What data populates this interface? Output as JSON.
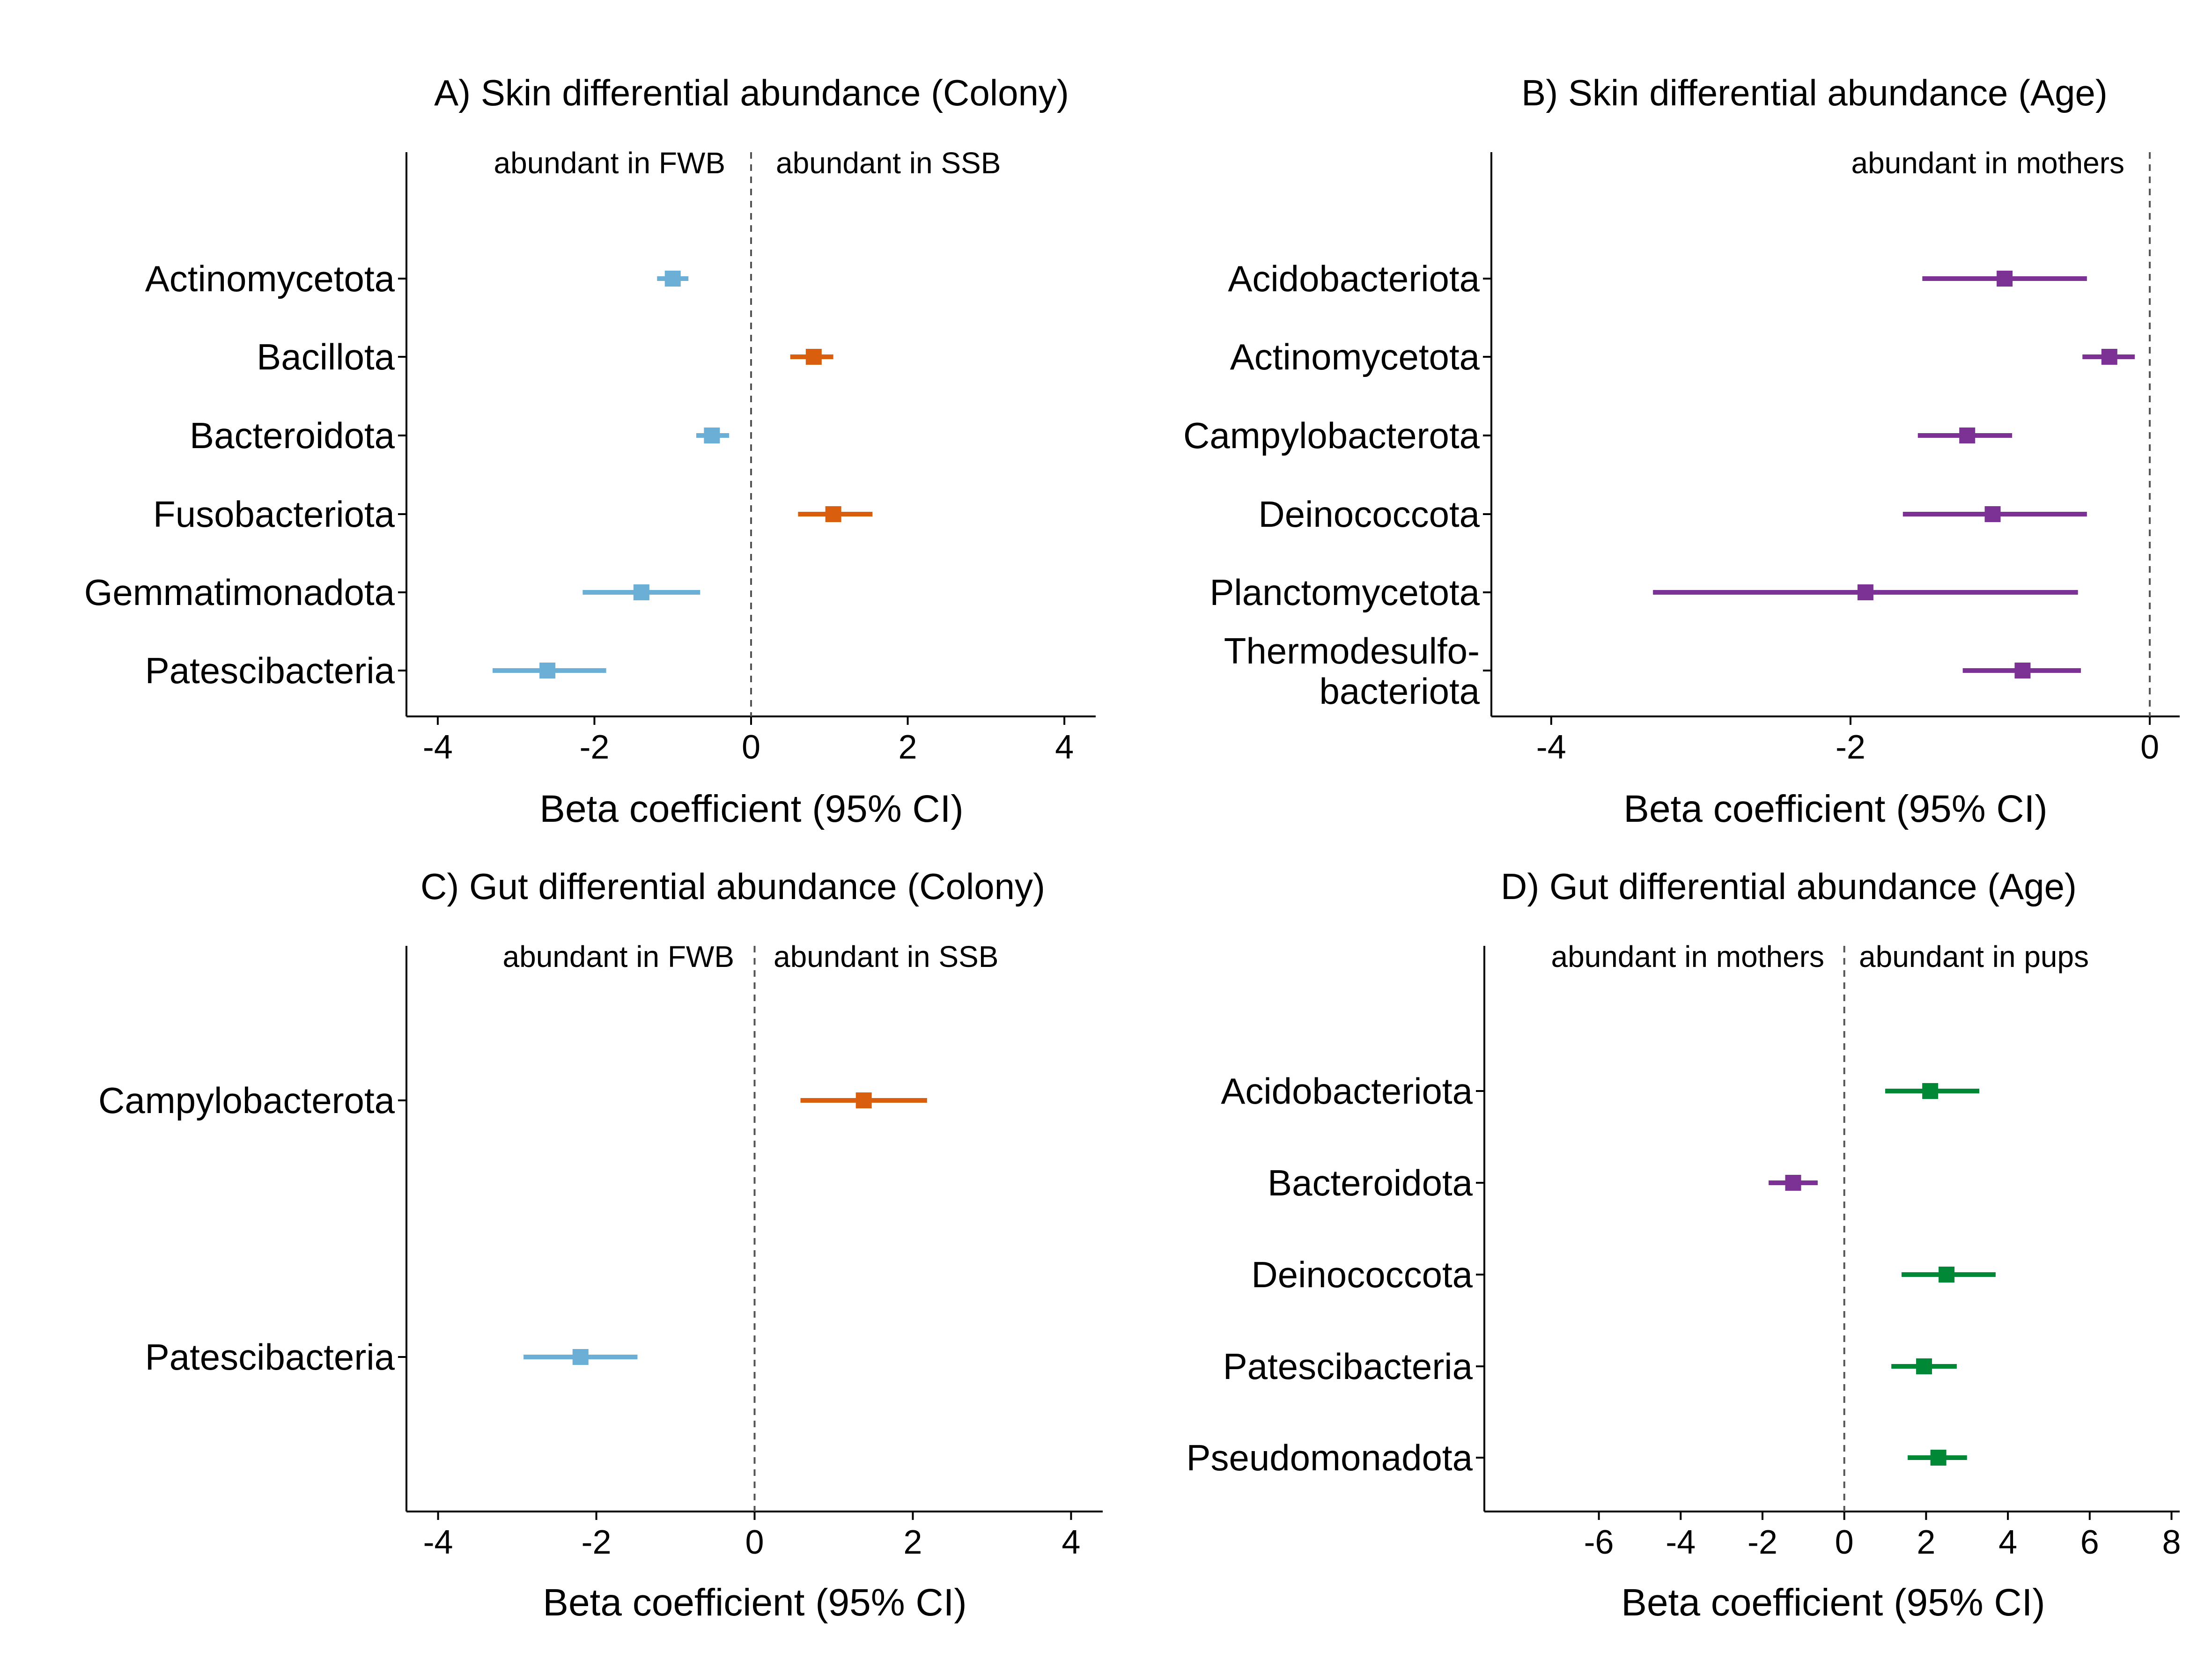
{
  "colors": {
    "fwb": "#6BAED6",
    "ssb": "#D95F0E",
    "mothers": "#7B3294",
    "pups": "#008837",
    "axis": "#000000",
    "zero_line": "#555555"
  },
  "chart_data": [
    {
      "type": "forest",
      "title": "A) Skin differential abundance (Colony)",
      "xlabel": "Beta coefficient (95% CI)",
      "xlim": [
        -4.4,
        4.4
      ],
      "xticks": [
        -4,
        -2,
        0,
        2,
        4
      ],
      "zero_line": 0,
      "annotations": [
        "abundant in FWB",
        "abundant in SSB"
      ],
      "categories": [
        "Actinomycetota",
        "Bacillota",
        "Bacteroidota",
        "Fusobacteriota",
        "Gemmatimonadota",
        "Patescibacteria"
      ],
      "estimates": [
        -1.0,
        0.8,
        -0.5,
        1.05,
        -1.4,
        -2.6
      ],
      "ci_low": [
        -1.2,
        0.5,
        -0.7,
        0.6,
        -2.15,
        -3.3
      ],
      "ci_high": [
        -0.8,
        1.05,
        -0.28,
        1.55,
        -0.65,
        -1.85
      ],
      "groups": [
        "fwb",
        "ssb",
        "fwb",
        "ssb",
        "fwb",
        "fwb"
      ]
    },
    {
      "type": "forest",
      "title": "B) Skin differential abundance (Age)",
      "xlabel": "Beta coefficient (95% CI)",
      "xlim": [
        -4.4,
        0.2
      ],
      "xticks": [
        -4,
        -2,
        0
      ],
      "zero_line": 0,
      "annotations": [
        "abundant in mothers"
      ],
      "categories": [
        "Acidobacteriota",
        "Actinomycetota",
        "Campylobacterota",
        "Deinococcota",
        "Planctomycetota",
        "Thermodesulfo-\nbacteriota"
      ],
      "estimates": [
        -0.97,
        -0.27,
        -1.22,
        -1.05,
        -1.9,
        -0.85
      ],
      "ci_low": [
        -1.52,
        -0.45,
        -1.55,
        -1.65,
        -3.32,
        -1.25
      ],
      "ci_high": [
        -0.42,
        -0.1,
        -0.92,
        -0.42,
        -0.48,
        -0.46
      ],
      "groups": [
        "mothers",
        "mothers",
        "mothers",
        "mothers",
        "mothers",
        "mothers"
      ]
    },
    {
      "type": "forest",
      "title": "C) Gut differential abundance (Colony)",
      "xlabel": "Beta coefficient (95% CI)",
      "xlim": [
        -4.4,
        4.4
      ],
      "xticks": [
        -4,
        -2,
        0,
        2,
        4
      ],
      "zero_line": 0,
      "annotations": [
        "abundant in FWB",
        "abundant in SSB"
      ],
      "categories": [
        "Campylobacterota",
        "Patescibacteria"
      ],
      "estimates": [
        1.38,
        -2.2
      ],
      "ci_low": [
        0.58,
        -2.92
      ],
      "ci_high": [
        2.18,
        -1.48
      ],
      "groups": [
        "ssb",
        "fwb"
      ]
    },
    {
      "type": "forest",
      "title": "D) Gut differential abundance (Age)",
      "xlabel": "Beta coefficient (95% CI)",
      "xlim": [
        -8.8,
        8.2
      ],
      "xticks": [
        -6,
        -4,
        -2,
        0,
        2,
        4,
        6,
        8
      ],
      "zero_line": 0,
      "annotations": [
        "abundant in mothers",
        "abundant in pups"
      ],
      "categories": [
        "Acidobacteriota",
        "Bacteroidota",
        "Deinococcota",
        "Patescibacteria",
        "Pseudomonadota"
      ],
      "estimates": [
        2.1,
        -1.25,
        2.5,
        1.95,
        2.3
      ],
      "ci_low": [
        1.0,
        -1.85,
        1.4,
        1.15,
        1.55
      ],
      "ci_high": [
        3.3,
        -0.65,
        3.7,
        2.75,
        3.0
      ],
      "groups": [
        "pups",
        "mothers",
        "pups",
        "pups",
        "pups"
      ]
    }
  ]
}
